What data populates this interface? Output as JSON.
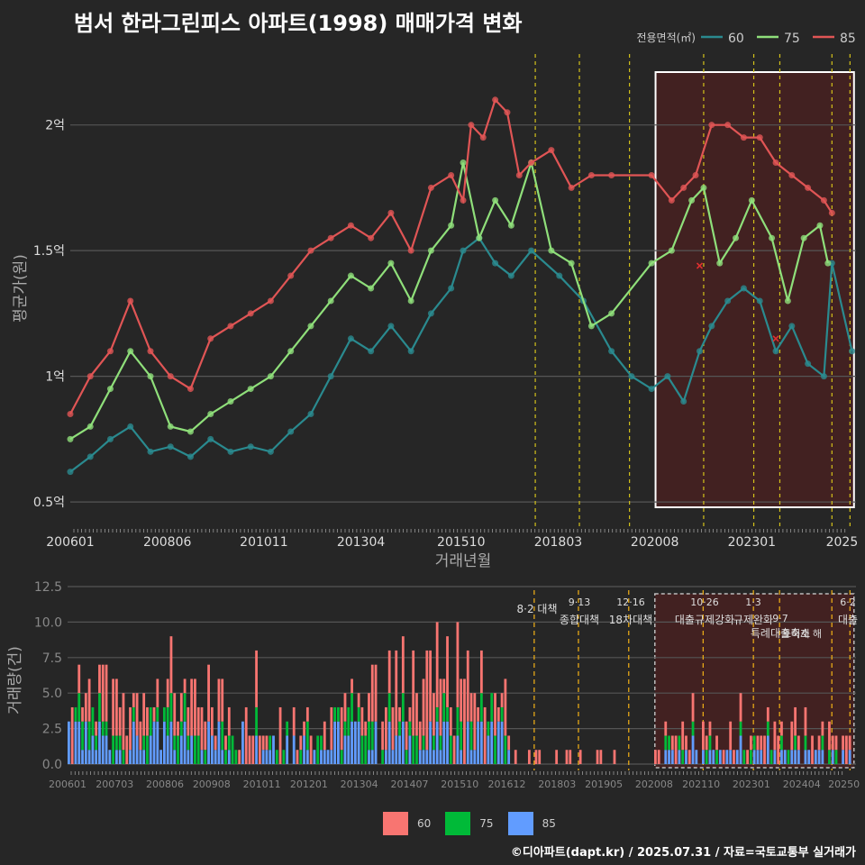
{
  "title": "범서 한라그린피스 아파트(1998) 매매가격 변화",
  "footer": "©디아파트(dapt.kr) / 2025.07.31 / 자료=국토교통부 실거래가",
  "colors": {
    "s60": "#2a8a8f",
    "s75": "#8fdf7a",
    "s85": "#e05555",
    "bar60": "#f87571",
    "bar75": "#00ba38",
    "bar85": "#619cff"
  },
  "chart_data": [
    {
      "type": "line",
      "title": "범서 한라그린피스 아파트(1998) 매매가격 변화",
      "xlabel": "거래년월",
      "ylabel": "평균가(원)",
      "legend_title": "전용면적(㎡)",
      "legend_position": "top-right",
      "x_ticks": [
        "200601",
        "200806",
        "201011",
        "201304",
        "201510",
        "201803",
        "202008",
        "202301",
        "2025"
      ],
      "y_ticks": [
        "0.5억",
        "1억",
        "1.5억",
        "2억"
      ],
      "ylim": [
        0.4,
        2.3
      ],
      "x_range": [
        2006.0,
        2025.6
      ],
      "grid": true,
      "series": [
        {
          "name": "60",
          "x": [
            2006.0,
            2006.5,
            2007.0,
            2007.5,
            2008.0,
            2008.5,
            2009.0,
            2009.5,
            2010.0,
            2010.5,
            2011.0,
            2011.5,
            2012.0,
            2012.5,
            2013.0,
            2013.5,
            2014.0,
            2014.5,
            2015.0,
            2015.5,
            2015.8,
            2016.2,
            2016.6,
            2017.0,
            2017.5,
            2018.2,
            2018.8,
            2019.5,
            2020.0,
            2020.5,
            2020.9,
            2021.3,
            2021.7,
            2022.0,
            2022.4,
            2022.8,
            2023.2,
            2023.6,
            2024.0,
            2024.4,
            2024.8,
            2025.0,
            2025.5
          ],
          "y": [
            0.62,
            0.68,
            0.75,
            0.8,
            0.7,
            0.72,
            0.68,
            0.75,
            0.7,
            0.72,
            0.7,
            0.78,
            0.85,
            1.0,
            1.15,
            1.1,
            1.2,
            1.1,
            1.25,
            1.35,
            1.5,
            1.55,
            1.45,
            1.4,
            1.5,
            1.4,
            1.3,
            1.1,
            1.0,
            0.95,
            1.0,
            0.9,
            1.1,
            1.2,
            1.3,
            1.35,
            1.3,
            1.1,
            1.2,
            1.05,
            1.0,
            1.45,
            1.1
          ]
        },
        {
          "name": "75",
          "x": [
            2006.0,
            2006.5,
            2007.0,
            2007.5,
            2008.0,
            2008.5,
            2009.0,
            2009.5,
            2010.0,
            2010.5,
            2011.0,
            2011.5,
            2012.0,
            2012.5,
            2013.0,
            2013.5,
            2014.0,
            2014.5,
            2015.0,
            2015.5,
            2015.8,
            2016.2,
            2016.6,
            2017.0,
            2017.5,
            2018.0,
            2018.5,
            2019.0,
            2019.5,
            2020.5,
            2021.0,
            2021.5,
            2021.8,
            2022.2,
            2022.6,
            2023.0,
            2023.5,
            2023.9,
            2024.3,
            2024.7,
            2024.9
          ],
          "y": [
            0.75,
            0.8,
            0.95,
            1.1,
            1.0,
            0.8,
            0.78,
            0.85,
            0.9,
            0.95,
            1.0,
            1.1,
            1.2,
            1.3,
            1.4,
            1.35,
            1.45,
            1.3,
            1.5,
            1.6,
            1.85,
            1.55,
            1.7,
            1.6,
            1.85,
            1.5,
            1.45,
            1.2,
            1.25,
            1.45,
            1.5,
            1.7,
            1.75,
            1.45,
            1.55,
            1.7,
            1.55,
            1.3,
            1.55,
            1.6,
            1.45
          ]
        },
        {
          "name": "85",
          "x": [
            2006.0,
            2006.5,
            2007.0,
            2007.5,
            2008.0,
            2008.5,
            2009.0,
            2009.5,
            2010.0,
            2010.5,
            2011.0,
            2011.5,
            2012.0,
            2012.5,
            2013.0,
            2013.5,
            2014.0,
            2014.5,
            2015.0,
            2015.5,
            2015.8,
            2016.0,
            2016.3,
            2016.6,
            2016.9,
            2017.2,
            2017.5,
            2018.0,
            2018.5,
            2019.0,
            2019.5,
            2020.5,
            2021.0,
            2021.3,
            2021.6,
            2022.0,
            2022.4,
            2022.8,
            2023.2,
            2023.6,
            2024.0,
            2024.4,
            2024.8,
            2025.0
          ],
          "y": [
            0.85,
            1.0,
            1.1,
            1.3,
            1.1,
            1.0,
            0.95,
            1.15,
            1.2,
            1.25,
            1.3,
            1.4,
            1.5,
            1.55,
            1.6,
            1.55,
            1.65,
            1.5,
            1.75,
            1.8,
            1.7,
            2.0,
            1.95,
            2.1,
            2.05,
            1.8,
            1.85,
            1.9,
            1.75,
            1.8,
            1.8,
            1.8,
            1.7,
            1.75,
            1.8,
            2.0,
            2.0,
            1.95,
            1.95,
            1.85,
            1.8,
            1.75,
            1.7,
            1.65
          ]
        }
      ],
      "markers": [
        {
          "x": 2021.7,
          "y": 1.44
        },
        {
          "x": 2023.6,
          "y": 1.15
        }
      ]
    },
    {
      "type": "bar",
      "stacked": true,
      "ylabel": "거래량(건)",
      "ylim": [
        0,
        12.5
      ],
      "y_ticks": [
        "0.0",
        "2.5",
        "5.0",
        "7.5",
        "10.0",
        "12.5"
      ],
      "x_ticks": [
        "200601",
        "200703",
        "200806",
        "200908",
        "201011",
        "201201",
        "201304",
        "201407",
        "201510",
        "201612",
        "201803",
        "201905",
        "202008",
        "202110",
        "202301",
        "202404",
        "20250"
      ],
      "legend_position": "bottom",
      "series_names": [
        "60",
        "75",
        "85"
      ],
      "annotations": [
        {
          "date": "8·2",
          "text": "대책"
        },
        {
          "date": "9·13",
          "text": "종합대책"
        },
        {
          "date": "12·16",
          "text": "18차대책"
        },
        {
          "date": "10·26",
          "text": "대출규제강화"
        },
        {
          "date": "1·3",
          "text": "규제완화"
        },
        {
          "date": "9·7",
          "text": "특례대출축소"
        },
        {
          "date": "토허제 해"
        },
        {
          "date": "6·2",
          "text": "대출"
        }
      ]
    }
  ]
}
